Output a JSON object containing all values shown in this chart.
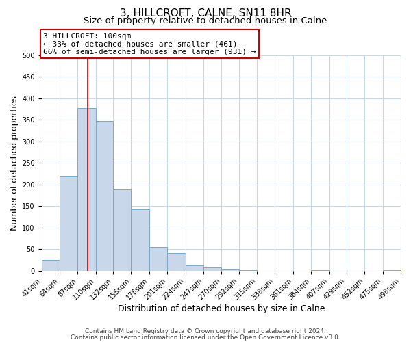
{
  "title": "3, HILLCROFT, CALNE, SN11 8HR",
  "subtitle": "Size of property relative to detached houses in Calne",
  "xlabel": "Distribution of detached houses by size in Calne",
  "ylabel": "Number of detached properties",
  "bin_edges": [
    41,
    64,
    87,
    110,
    132,
    155,
    178,
    201,
    224,
    247,
    270,
    292,
    315,
    338,
    361,
    384,
    407,
    429,
    452,
    475,
    498
  ],
  "bar_heights": [
    25,
    218,
    378,
    347,
    188,
    143,
    55,
    40,
    12,
    8,
    3,
    1,
    0,
    0,
    0,
    1,
    0,
    0,
    0,
    1
  ],
  "bar_color": "#c8d8ea",
  "bar_edge_color": "#7aaac8",
  "ylim": [
    0,
    500
  ],
  "yticks": [
    0,
    50,
    100,
    150,
    200,
    250,
    300,
    350,
    400,
    450,
    500
  ],
  "property_line_x": 100,
  "property_line_color": "#cc0000",
  "annotation_text": "3 HILLCROFT: 100sqm\n← 33% of detached houses are smaller (461)\n66% of semi-detached houses are larger (931) →",
  "annotation_box_color": "#ffffff",
  "annotation_box_edge_color": "#cc0000",
  "footer_line1": "Contains HM Land Registry data © Crown copyright and database right 2024.",
  "footer_line2": "Contains public sector information licensed under the Open Government Licence v3.0.",
  "background_color": "#ffffff",
  "grid_color": "#c8d8ea",
  "title_fontsize": 11,
  "subtitle_fontsize": 9.5,
  "axis_label_fontsize": 9,
  "tick_fontsize": 7,
  "annotation_fontsize": 8,
  "footer_fontsize": 6.5
}
